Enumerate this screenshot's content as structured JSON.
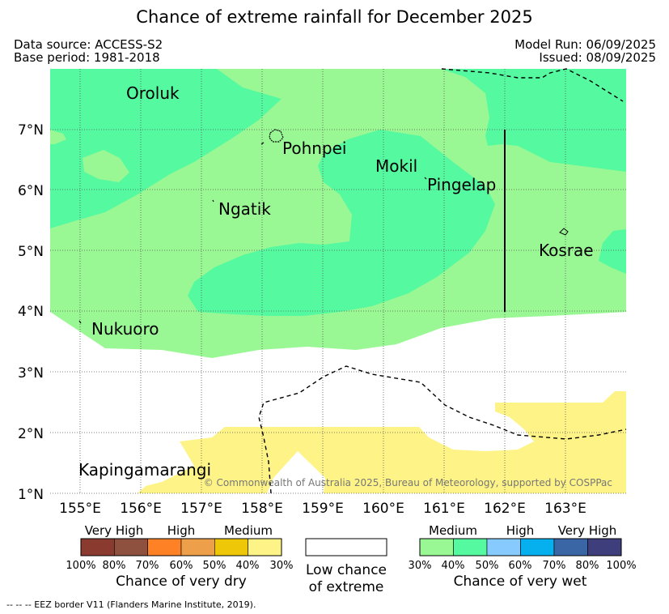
{
  "header": {
    "title": "Chance of extreme rainfall for December 2025",
    "data_source": "Data source: ACCESS-S2",
    "base_period": "Base period: 1981-2018",
    "model_run": "Model Run: 06/09/2025",
    "issued": "Issued: 08/09/2025"
  },
  "map": {
    "longitude_labels": [
      "155°E",
      "156°E",
      "157°E",
      "158°E",
      "159°E",
      "160°E",
      "161°E",
      "162°E",
      "163°E"
    ],
    "latitude_labels": [
      "7°N",
      "6°N",
      "5°N",
      "4°N",
      "3°N",
      "2°N",
      "1°N"
    ],
    "places": {
      "oroluk": "Oroluk",
      "pohnpei": "Pohnpei",
      "mokil": "Mokil",
      "pingelap": "Pingelap",
      "ngatik": "Ngatik",
      "kosrae": "Kosrae",
      "nukuoro": "Nukuoro",
      "kapingamarangi": "Kapingamarangi"
    },
    "copyright": "© Commonwealth of Australia 2025, Bureau of Meteorology, supported by COSPPac",
    "colors": {
      "wet_30_40": "#99f894",
      "wet_40_50": "#55f99f",
      "dry_30_40": "#fef386"
    }
  },
  "legend": {
    "dry": {
      "headers": [
        "Very High",
        "High",
        "Medium"
      ],
      "ticks": [
        "100%",
        "80%",
        "70%",
        "60%",
        "50%",
        "40%",
        "30%"
      ],
      "colors": [
        "#8b3a30",
        "#8e5140",
        "#fe8125",
        "#ee9f49",
        "#eec709",
        "#fef386"
      ],
      "title": "Chance of very dry"
    },
    "neutral": {
      "title_line1": "Low chance",
      "title_line2": "of extreme"
    },
    "wet": {
      "headers": [
        "Medium",
        "High",
        "Very High"
      ],
      "ticks": [
        "30%",
        "40%",
        "50%",
        "60%",
        "70%",
        "80%",
        "100%"
      ],
      "colors": [
        "#99f894",
        "#55f99f",
        "#87cafd",
        "#06b0ee",
        "#3b66a6",
        "#3f3e7c"
      ],
      "title": "Chance of very wet"
    }
  },
  "footnote": "--  --  -- EEZ border V11 (Flanders Marine Institute, 2019)."
}
